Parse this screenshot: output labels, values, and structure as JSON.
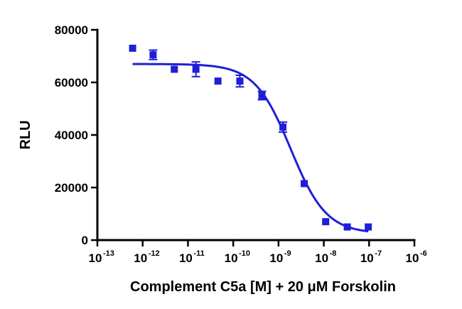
{
  "chart_data": {
    "type": "scatter",
    "xlabel": "Complement C5a [M] + 20 μM Forskolin",
    "ylabel": "RLU",
    "x_scale": "log",
    "xlim": [
      1e-13,
      1e-06
    ],
    "ylim": [
      0,
      80000
    ],
    "x_ticks": [
      {
        "base": "10",
        "exp": "-13"
      },
      {
        "base": "10",
        "exp": "-12"
      },
      {
        "base": "10",
        "exp": "-11"
      },
      {
        "base": "10",
        "exp": "-10"
      },
      {
        "base": "10",
        "exp": "-9"
      },
      {
        "base": "10",
        "exp": "-8"
      },
      {
        "base": "10",
        "exp": "-7"
      },
      {
        "base": "10",
        "exp": "-6"
      }
    ],
    "y_ticks": [
      "0",
      "20000",
      "40000",
      "60000",
      "80000"
    ],
    "grid": false,
    "legend": "none",
    "marker_color": "#1f1fd6",
    "curve_color": "#1f1fd6",
    "series": [
      {
        "points": [
          {
            "x": 6e-13,
            "y": 73000,
            "err": 0
          },
          {
            "x": 1.7e-12,
            "y": 70500,
            "err": 1800
          },
          {
            "x": 5e-12,
            "y": 65000,
            "err": 0
          },
          {
            "x": 1.5e-11,
            "y": 65000,
            "err": 2800
          },
          {
            "x": 4.6e-11,
            "y": 60500,
            "err": 0
          },
          {
            "x": 1.4e-10,
            "y": 60500,
            "err": 2200
          },
          {
            "x": 4.3e-10,
            "y": 55000,
            "err": 1600
          },
          {
            "x": 1.25e-09,
            "y": 43000,
            "err": 1900
          },
          {
            "x": 3.7e-09,
            "y": 21500,
            "err": 0
          },
          {
            "x": 1.1e-08,
            "y": 7000,
            "err": 0
          },
          {
            "x": 3.3e-08,
            "y": 5000,
            "err": 0
          },
          {
            "x": 9.6e-08,
            "y": 5000,
            "err": 0
          }
        ]
      }
    ],
    "fit_curve": {
      "model": "four-parameter logistic",
      "bottom": 2500,
      "top": 67000,
      "ec50": 1.85e-09,
      "hill_slope": 1.1,
      "x_range": [
        6e-13,
        9.6e-08
      ]
    }
  }
}
